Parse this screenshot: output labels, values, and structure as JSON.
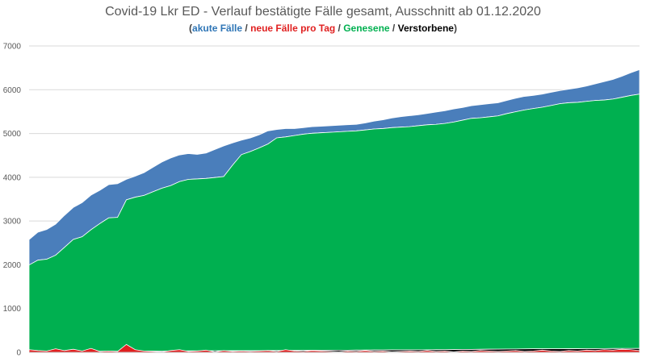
{
  "chart_data": {
    "type": "area",
    "title": "Covid-19 Lkr ED - Verlauf bestätigte Fälle gesamt, Ausschnitt ab 01.12.2020",
    "subtitle_parts": [
      {
        "text": "(",
        "color": "#404040"
      },
      {
        "text": "akute Fälle",
        "color": "#2e75b6"
      },
      {
        "text": " / ",
        "color": "#404040"
      },
      {
        "text": "neue Fälle pro Tag",
        "color": "#e02020"
      },
      {
        "text": " / ",
        "color": "#404040"
      },
      {
        "text": "Genesene",
        "color": "#00b050"
      },
      {
        "text": " / ",
        "color": "#404040"
      },
      {
        "text": "Verstorbene",
        "color": "#000000"
      },
      {
        "text": ")",
        "color": "#404040"
      }
    ],
    "ylim": [
      0,
      7000
    ],
    "yticks": [
      "0",
      "1000",
      "2000",
      "3000",
      "4000",
      "5000",
      "6000",
      "7000"
    ],
    "grid": true,
    "x": [
      0,
      2,
      4,
      6,
      8,
      10,
      12,
      14,
      16,
      18,
      20,
      22,
      24,
      26,
      28,
      30,
      32,
      34,
      36,
      38,
      40,
      42,
      44,
      46,
      48,
      50,
      52,
      54,
      56,
      58,
      60,
      62,
      64,
      66,
      68,
      70,
      72,
      74,
      76,
      78,
      80,
      82,
      84,
      86,
      88,
      90,
      92,
      94,
      96,
      98,
      100,
      102,
      104,
      106,
      108,
      110,
      112,
      114,
      116,
      118,
      120,
      122,
      124,
      126,
      128,
      130,
      132,
      134,
      136,
      138
    ],
    "series": [
      {
        "name": "Verstorbene",
        "color": "#000000",
        "values": [
          15,
          16,
          17,
          18,
          19,
          20,
          20,
          21,
          22,
          22,
          23,
          24,
          25,
          26,
          27,
          28,
          29,
          30,
          31,
          32,
          33,
          34,
          35,
          36,
          37,
          38,
          39,
          40,
          41,
          42,
          43,
          44,
          45,
          46,
          47,
          48,
          49,
          50,
          51,
          52,
          53,
          54,
          55,
          56,
          57,
          58,
          59,
          60,
          62,
          64,
          66,
          68,
          70,
          72,
          74,
          76,
          78,
          80,
          80,
          80,
          81,
          82,
          82,
          83,
          84,
          85,
          86,
          87,
          88,
          89
        ]
      },
      {
        "name": "Genesene",
        "color": "#00b050",
        "values": [
          1980,
          2090,
          2110,
          2200,
          2380,
          2560,
          2620,
          2780,
          2920,
          3050,
          3060,
          3460,
          3520,
          3560,
          3640,
          3720,
          3780,
          3870,
          3920,
          3930,
          3940,
          3960,
          3980,
          4240,
          4480,
          4550,
          4630,
          4720,
          4860,
          4880,
          4910,
          4940,
          4960,
          4970,
          4980,
          4990,
          5000,
          5010,
          5030,
          5050,
          5060,
          5080,
          5090,
          5100,
          5120,
          5140,
          5150,
          5170,
          5200,
          5240,
          5280,
          5290,
          5310,
          5330,
          5380,
          5420,
          5460,
          5490,
          5520,
          5560,
          5600,
          5620,
          5630,
          5650,
          5670,
          5680,
          5700,
          5740,
          5780,
          5810
        ]
      },
      {
        "name": "akute Fälle",
        "color": "#4a7ebb",
        "values": [
          580,
          640,
          680,
          710,
          730,
          730,
          780,
          790,
          760,
          760,
          770,
          470,
          480,
          520,
          560,
          600,
          630,
          610,
          590,
          560,
          580,
          640,
          700,
          510,
          330,
          310,
          300,
          300,
          190,
          190,
          160,
          150,
          150,
          150,
          150,
          150,
          150,
          150,
          160,
          180,
          200,
          220,
          240,
          250,
          250,
          260,
          280,
          290,
          300,
          290,
          290,
          300,
          300,
          300,
          300,
          310,
          310,
          300,
          300,
          300,
          300,
          310,
          330,
          350,
          380,
          420,
          450,
          480,
          520,
          560
        ]
      },
      {
        "name": "neue Fälle pro Tag",
        "color": "#e02020",
        "values": [
          60,
          40,
          30,
          80,
          40,
          70,
          30,
          90,
          20,
          30,
          20,
          180,
          60,
          30,
          20,
          10,
          40,
          60,
          20,
          30,
          50,
          10,
          40,
          20,
          30,
          20,
          30,
          40,
          20,
          60,
          30,
          20,
          40,
          30,
          20,
          10,
          30,
          20,
          40,
          20,
          30,
          10,
          20,
          30,
          20,
          40,
          20,
          30,
          10,
          30,
          20,
          40,
          30,
          20,
          30,
          40,
          20,
          30,
          50,
          30,
          20,
          40,
          30,
          50,
          40,
          60,
          50,
          70,
          60,
          40
        ]
      }
    ]
  }
}
